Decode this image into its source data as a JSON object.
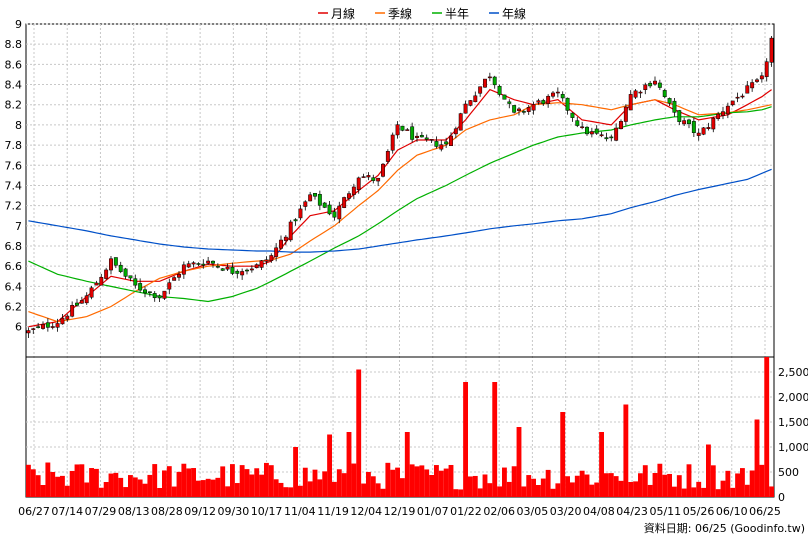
{
  "legend": [
    {
      "label": "月線",
      "color": "#e00000"
    },
    {
      "label": "季線",
      "color": "#ff6a00"
    },
    {
      "label": "半年",
      "color": "#00b000"
    },
    {
      "label": "年線",
      "color": "#0050c8"
    }
  ],
  "credit": "資料日期: 06/25 (Goodinfo.tw)",
  "colors": {
    "up": "#e00000",
    "down": "#00aa00",
    "volume": "#ff0000",
    "grid": "#c8c8c8",
    "axis": "#000000"
  },
  "chart_data": {
    "type": "candlestick+volume",
    "price_axis": {
      "min": 5.7,
      "max": 9.0,
      "ticks": [
        "6",
        "6.2",
        "6.4",
        "6.6",
        "6.8",
        "7",
        "7.2",
        "7.4",
        "7.6",
        "7.8",
        "8",
        "8.2",
        "8.4",
        "8.6",
        "8.8",
        "9"
      ]
    },
    "volume_axis": {
      "min": 0,
      "max": 2800,
      "ticks": [
        "0",
        "500",
        "1,000",
        "1,500",
        "2,000",
        "2,500"
      ]
    },
    "x_ticks": [
      "06/27",
      "07/14",
      "07/29",
      "08/13",
      "08/28",
      "09/12",
      "09/30",
      "10/17",
      "11/04",
      "11/19",
      "12/04",
      "12/19",
      "01/07",
      "01/22",
      "02/06",
      "03/05",
      "03/20",
      "04/08",
      "04/23",
      "05/11",
      "05/26",
      "06/10",
      "06/25"
    ],
    "close_anchors": [
      [
        0,
        5.95
      ],
      [
        6,
        6.05
      ],
      [
        12,
        6.3
      ],
      [
        17,
        6.65
      ],
      [
        22,
        6.4
      ],
      [
        27,
        6.3
      ],
      [
        32,
        6.6
      ],
      [
        37,
        6.65
      ],
      [
        42,
        6.55
      ],
      [
        47,
        6.6
      ],
      [
        50,
        6.7
      ],
      [
        54,
        7.0
      ],
      [
        58,
        7.3
      ],
      [
        63,
        7.1
      ],
      [
        68,
        7.5
      ],
      [
        72,
        7.45
      ],
      [
        76,
        8.0
      ],
      [
        80,
        7.85
      ],
      [
        86,
        7.8
      ],
      [
        90,
        8.2
      ],
      [
        95,
        8.5
      ],
      [
        100,
        8.1
      ],
      [
        104,
        8.2
      ],
      [
        109,
        8.3
      ],
      [
        114,
        7.95
      ],
      [
        120,
        7.85
      ],
      [
        124,
        8.3
      ],
      [
        129,
        8.45
      ],
      [
        133,
        8.1
      ],
      [
        138,
        7.9
      ],
      [
        144,
        8.2
      ],
      [
        148,
        8.35
      ],
      [
        151,
        8.45
      ],
      [
        153,
        8.85
      ]
    ],
    "moving_averages": {
      "月線": [
        [
          0,
          6.0
        ],
        [
          6,
          6.05
        ],
        [
          12,
          6.3
        ],
        [
          17,
          6.5
        ],
        [
          22,
          6.45
        ],
        [
          27,
          6.45
        ],
        [
          32,
          6.55
        ],
        [
          37,
          6.62
        ],
        [
          42,
          6.6
        ],
        [
          47,
          6.6
        ],
        [
          50,
          6.65
        ],
        [
          54,
          6.9
        ],
        [
          58,
          7.1
        ],
        [
          63,
          7.15
        ],
        [
          68,
          7.35
        ],
        [
          72,
          7.5
        ],
        [
          76,
          7.75
        ],
        [
          80,
          7.85
        ],
        [
          86,
          7.85
        ],
        [
          90,
          8.05
        ],
        [
          95,
          8.35
        ],
        [
          100,
          8.25
        ],
        [
          104,
          8.2
        ],
        [
          109,
          8.25
        ],
        [
          114,
          8.05
        ],
        [
          120,
          8.0
        ],
        [
          124,
          8.2
        ],
        [
          129,
          8.25
        ],
        [
          133,
          8.15
        ],
        [
          138,
          8.05
        ],
        [
          144,
          8.1
        ],
        [
          148,
          8.2
        ],
        [
          151,
          8.28
        ],
        [
          153,
          8.35
        ]
      ],
      "季線": [
        [
          0,
          6.15
        ],
        [
          6,
          6.05
        ],
        [
          12,
          6.1
        ],
        [
          17,
          6.2
        ],
        [
          22,
          6.35
        ],
        [
          27,
          6.48
        ],
        [
          32,
          6.55
        ],
        [
          37,
          6.6
        ],
        [
          42,
          6.63
        ],
        [
          47,
          6.65
        ],
        [
          50,
          6.66
        ],
        [
          54,
          6.72
        ],
        [
          58,
          6.85
        ],
        [
          63,
          7.0
        ],
        [
          68,
          7.2
        ],
        [
          72,
          7.35
        ],
        [
          76,
          7.55
        ],
        [
          80,
          7.7
        ],
        [
          86,
          7.8
        ],
        [
          90,
          7.95
        ],
        [
          95,
          8.05
        ],
        [
          100,
          8.1
        ],
        [
          104,
          8.2
        ],
        [
          109,
          8.22
        ],
        [
          114,
          8.2
        ],
        [
          120,
          8.15
        ],
        [
          124,
          8.2
        ],
        [
          129,
          8.25
        ],
        [
          133,
          8.2
        ],
        [
          138,
          8.1
        ],
        [
          144,
          8.12
        ],
        [
          148,
          8.15
        ],
        [
          151,
          8.18
        ],
        [
          153,
          8.2
        ]
      ],
      "半年": [
        [
          0,
          6.65
        ],
        [
          6,
          6.52
        ],
        [
          12,
          6.45
        ],
        [
          17,
          6.4
        ],
        [
          22,
          6.35
        ],
        [
          27,
          6.3
        ],
        [
          32,
          6.28
        ],
        [
          37,
          6.25
        ],
        [
          42,
          6.3
        ],
        [
          47,
          6.38
        ],
        [
          50,
          6.45
        ],
        [
          54,
          6.55
        ],
        [
          58,
          6.65
        ],
        [
          63,
          6.78
        ],
        [
          68,
          6.9
        ],
        [
          72,
          7.02
        ],
        [
          76,
          7.15
        ],
        [
          80,
          7.27
        ],
        [
          86,
          7.4
        ],
        [
          90,
          7.5
        ],
        [
          95,
          7.62
        ],
        [
          100,
          7.72
        ],
        [
          104,
          7.8
        ],
        [
          109,
          7.88
        ],
        [
          114,
          7.92
        ],
        [
          120,
          7.95
        ],
        [
          124,
          8.0
        ],
        [
          129,
          8.05
        ],
        [
          133,
          8.08
        ],
        [
          138,
          8.08
        ],
        [
          144,
          8.12
        ],
        [
          148,
          8.13
        ],
        [
          151,
          8.15
        ],
        [
          153,
          8.18
        ]
      ],
      "年線": [
        [
          0,
          7.05
        ],
        [
          6,
          7.0
        ],
        [
          12,
          6.95
        ],
        [
          17,
          6.9
        ],
        [
          22,
          6.86
        ],
        [
          27,
          6.82
        ],
        [
          32,
          6.79
        ],
        [
          37,
          6.77
        ],
        [
          42,
          6.76
        ],
        [
          47,
          6.75
        ],
        [
          50,
          6.75
        ],
        [
          54,
          6.74
        ],
        [
          58,
          6.74
        ],
        [
          63,
          6.75
        ],
        [
          68,
          6.77
        ],
        [
          72,
          6.8
        ],
        [
          76,
          6.83
        ],
        [
          80,
          6.86
        ],
        [
          86,
          6.9
        ],
        [
          90,
          6.93
        ],
        [
          95,
          6.97
        ],
        [
          100,
          7.0
        ],
        [
          104,
          7.02
        ],
        [
          109,
          7.05
        ],
        [
          114,
          7.07
        ],
        [
          120,
          7.12
        ],
        [
          124,
          7.18
        ],
        [
          129,
          7.24
        ],
        [
          133,
          7.3
        ],
        [
          138,
          7.36
        ],
        [
          144,
          7.42
        ],
        [
          148,
          7.46
        ],
        [
          151,
          7.52
        ],
        [
          153,
          7.56
        ]
      ]
    },
    "volume_profile": {
      "baseline": 500,
      "spikes": [
        [
          55,
          1000
        ],
        [
          62,
          1250
        ],
        [
          66,
          1300
        ],
        [
          68,
          2550
        ],
        [
          78,
          1300
        ],
        [
          90,
          2300
        ],
        [
          96,
          2300
        ],
        [
          101,
          1400
        ],
        [
          110,
          1700
        ],
        [
          118,
          1300
        ],
        [
          123,
          1850
        ],
        [
          140,
          1050
        ],
        [
          150,
          1550
        ],
        [
          152,
          2800
        ]
      ]
    }
  }
}
